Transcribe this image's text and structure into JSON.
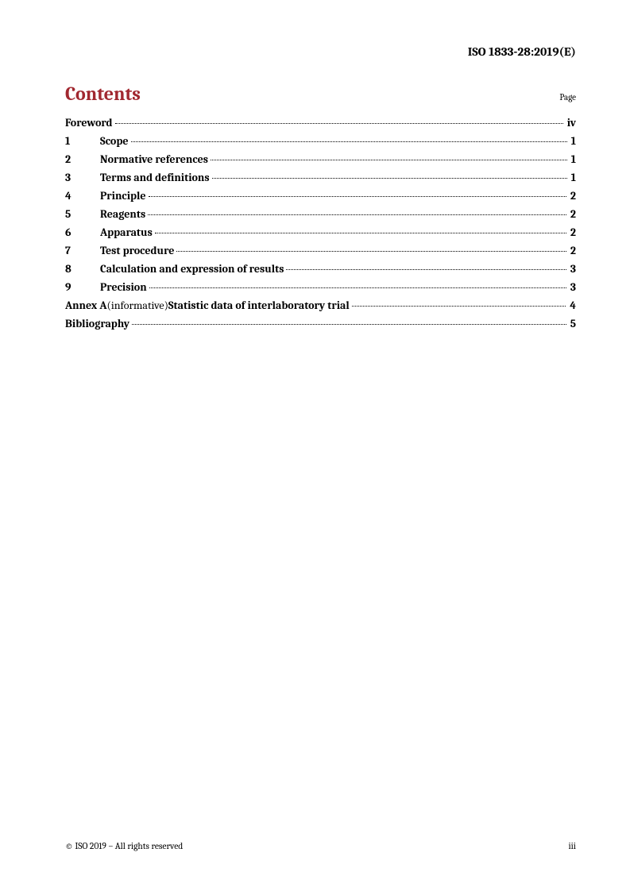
{
  "header": {
    "doc_id": "ISO 1833-28:2019(E)"
  },
  "contents": {
    "title": "Contents",
    "page_label": "Page",
    "entries": [
      {
        "num": "",
        "title_bold": "Foreword",
        "title_plain": "",
        "title_bold2": "",
        "page": "iv"
      },
      {
        "num": "1",
        "title_bold": "Scope",
        "title_plain": "",
        "title_bold2": "",
        "page": "1"
      },
      {
        "num": "2",
        "title_bold": "Normative references",
        "title_plain": "",
        "title_bold2": "",
        "page": "1"
      },
      {
        "num": "3",
        "title_bold": "Terms and definitions",
        "title_plain": "",
        "title_bold2": "",
        "page": "1"
      },
      {
        "num": "4",
        "title_bold": "Principle",
        "title_plain": "",
        "title_bold2": "",
        "page": "2"
      },
      {
        "num": "5",
        "title_bold": "Reagents",
        "title_plain": "",
        "title_bold2": "",
        "page": "2"
      },
      {
        "num": "6",
        "title_bold": "Apparatus",
        "title_plain": "",
        "title_bold2": "",
        "page": "2"
      },
      {
        "num": "7",
        "title_bold": "Test procedure",
        "title_plain": "",
        "title_bold2": "",
        "page": "2"
      },
      {
        "num": "8",
        "title_bold": "Calculation and expression of results",
        "title_plain": "",
        "title_bold2": "",
        "page": "3"
      },
      {
        "num": "9",
        "title_bold": "Precision",
        "title_plain": "",
        "title_bold2": "",
        "page": "3"
      },
      {
        "num": "",
        "title_bold": "Annex A ",
        "title_plain": "(informative) ",
        "title_bold2": "Statistic data of interlaboratory trial",
        "page": "4"
      },
      {
        "num": "",
        "title_bold": "Bibliography",
        "title_plain": "",
        "title_bold2": "",
        "page": "5"
      }
    ]
  },
  "footer": {
    "copyright": "© ISO 2019 – All rights reserved",
    "page_number": "iii"
  }
}
